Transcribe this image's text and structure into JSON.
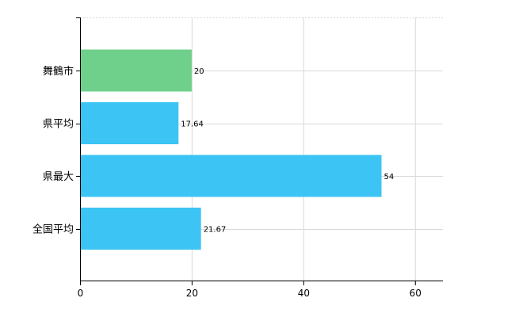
{
  "chart_data": {
    "type": "bar",
    "orientation": "horizontal",
    "categories": [
      "舞鶴市",
      "県平均",
      "県最大",
      "全国平均"
    ],
    "values": [
      20,
      17.64,
      54,
      21.67
    ],
    "data_labels": [
      "20",
      "17.64",
      "54",
      "21.67"
    ],
    "bar_colors": [
      "#6fd08c",
      "#3cc4f4",
      "#3cc4f4",
      "#3cc4f4"
    ],
    "xlim": [
      0,
      65
    ],
    "x_ticks": [
      0,
      20,
      40,
      60
    ],
    "x_tick_labels": [
      "0",
      "20",
      "40",
      "60"
    ],
    "grid": true,
    "title": "",
    "xlabel": "",
    "ylabel": ""
  },
  "colors": {
    "highlight": "#6fd08c",
    "standard": "#3cc4f4",
    "grid": "#d9d9d9",
    "axis": "#000000"
  }
}
